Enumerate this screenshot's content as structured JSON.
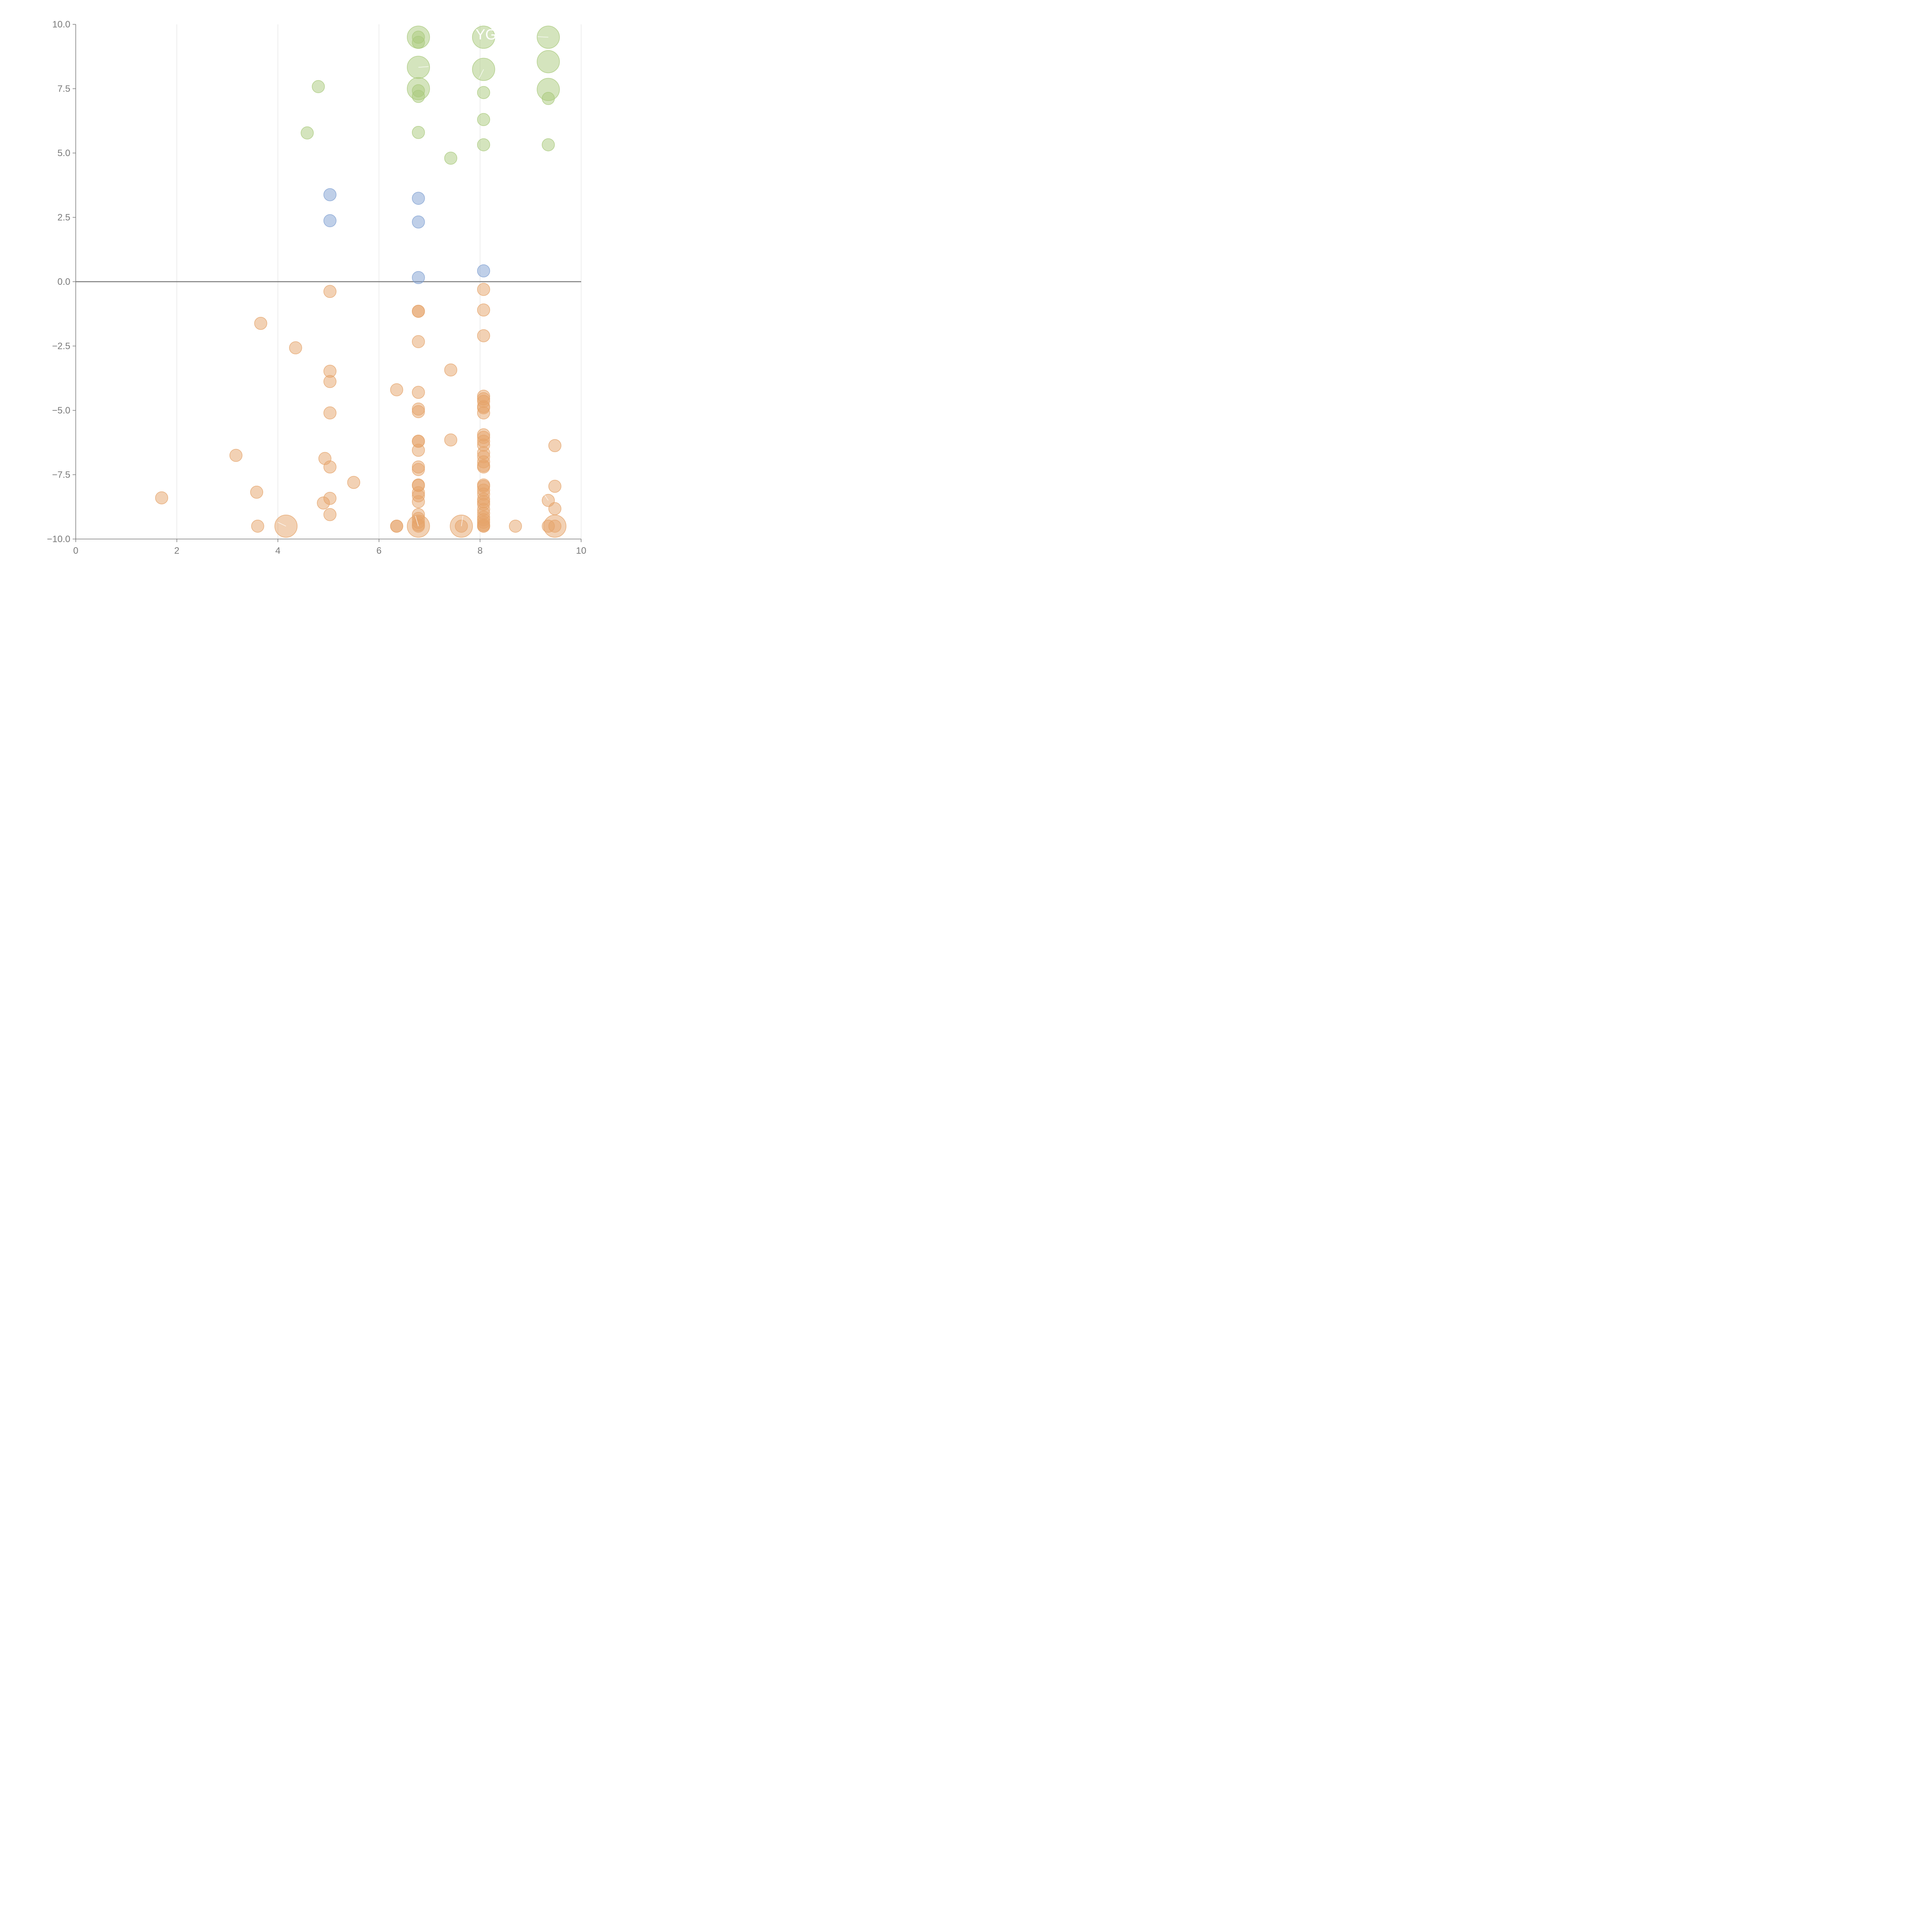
{
  "chart_data": {
    "type": "scatter",
    "title": "",
    "xlabel": "",
    "ylabel": "",
    "xlim": [
      0,
      10
    ],
    "ylim": [
      -10,
      10
    ],
    "x_ticks": [
      0,
      2,
      4,
      6,
      8,
      10
    ],
    "x_tick_labels": [
      "0",
      "2",
      "4",
      "6",
      "8",
      "10"
    ],
    "y_ticks": [
      10,
      7.5,
      5,
      2.5,
      0,
      -2.5,
      -5,
      -7.5,
      -10
    ],
    "y_tick_labels": [
      "10.0",
      "7.5",
      "5.0",
      "2.5",
      "0.0",
      "−2.5",
      "−5.0",
      "−7.5",
      "−10.0"
    ],
    "grid": "vertical lines at x ticks",
    "zero_line": true,
    "colors": {
      "green": "#a9c97c",
      "blue": "#7fa0d2",
      "orange": "#e5a46a",
      "axis": "#7a7a7a",
      "grid": "#dddddd"
    },
    "series": [
      {
        "color": "green",
        "points": [
          {
            "x": 4.8,
            "y": 7.58,
            "s": 1
          },
          {
            "x": 4.58,
            "y": 5.78,
            "s": 1
          },
          {
            "x": 6.78,
            "y": 9.5,
            "s": 2.5
          },
          {
            "x": 6.78,
            "y": 9.5,
            "s": 1
          },
          {
            "x": 6.78,
            "y": 9.3,
            "s": 1
          },
          {
            "x": 6.78,
            "y": 8.33,
            "s": 2.5
          },
          {
            "x": 6.78,
            "y": 7.5,
            "s": 2.5
          },
          {
            "x": 6.78,
            "y": 7.42,
            "s": 1
          },
          {
            "x": 6.78,
            "y": 7.2,
            "s": 1
          },
          {
            "x": 6.78,
            "y": 5.8,
            "s": 1
          },
          {
            "x": 7.42,
            "y": 4.8,
            "s": 1
          },
          {
            "x": 8.07,
            "y": 9.5,
            "s": 2.5
          },
          {
            "x": 8.07,
            "y": 8.25,
            "s": 2.5
          },
          {
            "x": 8.07,
            "y": 7.35,
            "s": 1
          },
          {
            "x": 8.07,
            "y": 6.3,
            "s": 1
          },
          {
            "x": 8.07,
            "y": 5.32,
            "s": 1
          },
          {
            "x": 9.35,
            "y": 9.5,
            "s": 2.5
          },
          {
            "x": 9.35,
            "y": 8.55,
            "s": 2.5
          },
          {
            "x": 9.35,
            "y": 7.47,
            "s": 2.5
          },
          {
            "x": 9.35,
            "y": 7.12,
            "s": 1
          },
          {
            "x": 9.35,
            "y": 5.32,
            "s": 1
          }
        ]
      },
      {
        "color": "blue",
        "points": [
          {
            "x": 5.03,
            "y": 3.38,
            "s": 1
          },
          {
            "x": 5.03,
            "y": 2.37,
            "s": 1
          },
          {
            "x": 6.78,
            "y": 3.24,
            "s": 1
          },
          {
            "x": 6.78,
            "y": 2.32,
            "s": 1
          },
          {
            "x": 6.78,
            "y": 0.16,
            "s": 1
          },
          {
            "x": 8.07,
            "y": 0.42,
            "s": 1
          }
        ]
      },
      {
        "color": "orange",
        "points": [
          {
            "x": 1.7,
            "y": -8.4,
            "s": 1
          },
          {
            "x": 3.17,
            "y": -6.75,
            "s": 1
          },
          {
            "x": 3.58,
            "y": -8.18,
            "s": 1
          },
          {
            "x": 3.6,
            "y": -9.5,
            "s": 1
          },
          {
            "x": 3.66,
            "y": -1.62,
            "s": 1
          },
          {
            "x": 4.16,
            "y": -9.5,
            "s": 2.5
          },
          {
            "x": 4.35,
            "y": -2.57,
            "s": 1
          },
          {
            "x": 4.9,
            "y": -8.6,
            "s": 1
          },
          {
            "x": 4.93,
            "y": -6.87,
            "s": 1
          },
          {
            "x": 5.03,
            "y": -0.38,
            "s": 1
          },
          {
            "x": 5.03,
            "y": -3.48,
            "s": 1
          },
          {
            "x": 5.03,
            "y": -3.88,
            "s": 1
          },
          {
            "x": 5.03,
            "y": -5.1,
            "s": 1
          },
          {
            "x": 5.03,
            "y": -7.2,
            "s": 1
          },
          {
            "x": 5.03,
            "y": -8.42,
            "s": 1
          },
          {
            "x": 5.03,
            "y": -9.05,
            "s": 1
          },
          {
            "x": 5.5,
            "y": -7.8,
            "s": 1
          },
          {
            "x": 6.35,
            "y": -4.2,
            "s": 1
          },
          {
            "x": 6.35,
            "y": -9.5,
            "s": 1
          },
          {
            "x": 6.35,
            "y": -9.5,
            "s": 1
          },
          {
            "x": 6.78,
            "y": -1.15,
            "s": 1
          },
          {
            "x": 6.78,
            "y": -1.15,
            "s": 1
          },
          {
            "x": 6.78,
            "y": -2.33,
            "s": 1
          },
          {
            "x": 6.78,
            "y": -4.3,
            "s": 1
          },
          {
            "x": 6.78,
            "y": -4.95,
            "s": 1
          },
          {
            "x": 6.78,
            "y": -5.05,
            "s": 1
          },
          {
            "x": 6.78,
            "y": -6.2,
            "s": 1
          },
          {
            "x": 6.78,
            "y": -6.2,
            "s": 1
          },
          {
            "x": 6.78,
            "y": -6.55,
            "s": 1
          },
          {
            "x": 6.78,
            "y": -7.2,
            "s": 1
          },
          {
            "x": 6.78,
            "y": -7.3,
            "s": 1
          },
          {
            "x": 6.78,
            "y": -7.9,
            "s": 1
          },
          {
            "x": 6.78,
            "y": -7.92,
            "s": 1
          },
          {
            "x": 6.78,
            "y": -8.2,
            "s": 1
          },
          {
            "x": 6.78,
            "y": -8.32,
            "s": 1
          },
          {
            "x": 6.78,
            "y": -8.55,
            "s": 1
          },
          {
            "x": 6.78,
            "y": -9.05,
            "s": 1
          },
          {
            "x": 6.78,
            "y": -9.2,
            "s": 1
          },
          {
            "x": 6.78,
            "y": -9.35,
            "s": 1
          },
          {
            "x": 6.78,
            "y": -9.45,
            "s": 1
          },
          {
            "x": 6.78,
            "y": -9.5,
            "s": 1
          },
          {
            "x": 6.78,
            "y": -9.5,
            "s": 2.5
          },
          {
            "x": 7.42,
            "y": -3.43,
            "s": 1
          },
          {
            "x": 7.42,
            "y": -6.15,
            "s": 1
          },
          {
            "x": 7.63,
            "y": -9.5,
            "s": 2.5
          },
          {
            "x": 7.63,
            "y": -9.5,
            "s": 1
          },
          {
            "x": 8.07,
            "y": -0.3,
            "s": 1
          },
          {
            "x": 8.07,
            "y": -1.1,
            "s": 1
          },
          {
            "x": 8.07,
            "y": -2.1,
            "s": 1
          },
          {
            "x": 8.07,
            "y": -4.45,
            "s": 1
          },
          {
            "x": 8.07,
            "y": -4.55,
            "s": 1
          },
          {
            "x": 8.07,
            "y": -4.65,
            "s": 1
          },
          {
            "x": 8.07,
            "y": -4.85,
            "s": 1
          },
          {
            "x": 8.07,
            "y": -4.9,
            "s": 1
          },
          {
            "x": 8.07,
            "y": -5.1,
            "s": 1
          },
          {
            "x": 8.07,
            "y": -5.95,
            "s": 1
          },
          {
            "x": 8.07,
            "y": -6.05,
            "s": 1
          },
          {
            "x": 8.07,
            "y": -6.2,
            "s": 1
          },
          {
            "x": 8.07,
            "y": -6.35,
            "s": 1
          },
          {
            "x": 8.07,
            "y": -6.65,
            "s": 1
          },
          {
            "x": 8.07,
            "y": -6.8,
            "s": 1
          },
          {
            "x": 8.07,
            "y": -7.0,
            "s": 1
          },
          {
            "x": 8.07,
            "y": -7.15,
            "s": 1
          },
          {
            "x": 8.07,
            "y": -7.2,
            "s": 1
          },
          {
            "x": 8.07,
            "y": -7.9,
            "s": 1
          },
          {
            "x": 8.07,
            "y": -7.95,
            "s": 1
          },
          {
            "x": 8.07,
            "y": -8.1,
            "s": 1
          },
          {
            "x": 8.07,
            "y": -8.25,
            "s": 1
          },
          {
            "x": 8.07,
            "y": -8.45,
            "s": 1
          },
          {
            "x": 8.07,
            "y": -8.55,
            "s": 1
          },
          {
            "x": 8.07,
            "y": -8.65,
            "s": 1
          },
          {
            "x": 8.07,
            "y": -8.85,
            "s": 1
          },
          {
            "x": 8.07,
            "y": -9.0,
            "s": 1
          },
          {
            "x": 8.07,
            "y": -9.15,
            "s": 1
          },
          {
            "x": 8.07,
            "y": -9.25,
            "s": 1
          },
          {
            "x": 8.07,
            "y": -9.35,
            "s": 1
          },
          {
            "x": 8.07,
            "y": -9.45,
            "s": 1
          },
          {
            "x": 8.07,
            "y": -9.5,
            "s": 1
          },
          {
            "x": 8.07,
            "y": -9.5,
            "s": 1
          },
          {
            "x": 8.7,
            "y": -9.5,
            "s": 1
          },
          {
            "x": 9.35,
            "y": -8.5,
            "s": 1
          },
          {
            "x": 9.35,
            "y": -9.5,
            "s": 1
          },
          {
            "x": 9.48,
            "y": -6.37,
            "s": 1
          },
          {
            "x": 9.48,
            "y": -7.95,
            "s": 1
          },
          {
            "x": 9.48,
            "y": -8.82,
            "s": 1
          },
          {
            "x": 9.48,
            "y": -9.5,
            "s": 1
          },
          {
            "x": 9.48,
            "y": -9.5,
            "s": 2.5
          }
        ]
      }
    ],
    "annotations": [
      "YG"
    ]
  }
}
